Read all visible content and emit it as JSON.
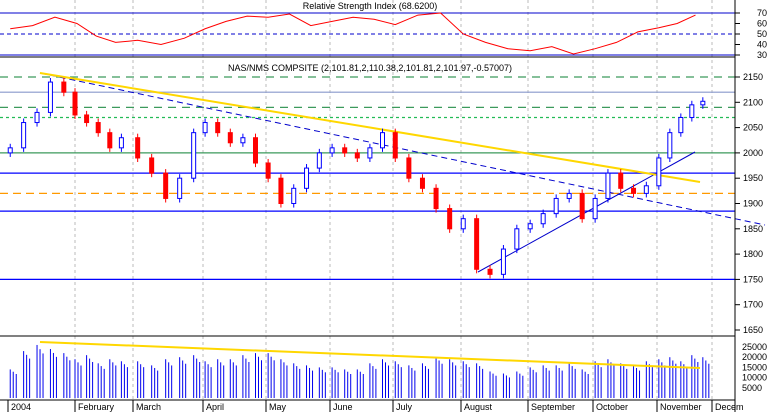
{
  "chart_data": [
    {
      "type": "line",
      "title": "Relative Strength Index (68.6200)",
      "ylim": [
        20,
        80
      ],
      "yticks": [
        30,
        40,
        50,
        60,
        70
      ],
      "levels": [
        30,
        50,
        70
      ],
      "x": [
        "2004-01-02",
        "2004-01-12",
        "2004-01-22",
        "2004-02-02",
        "2004-02-12",
        "2004-02-22",
        "2004-03-03",
        "2004-03-13",
        "2004-03-23",
        "2004-04-02",
        "2004-04-12",
        "2004-04-22",
        "2004-05-02",
        "2004-05-12",
        "2004-05-22",
        "2004-06-02",
        "2004-06-12",
        "2004-06-22",
        "2004-07-02",
        "2004-07-12",
        "2004-07-22",
        "2004-08-02",
        "2004-08-12",
        "2004-08-22",
        "2004-09-02",
        "2004-09-12",
        "2004-09-22",
        "2004-10-02",
        "2004-10-12",
        "2004-10-22",
        "2004-11-02",
        "2004-11-12",
        "2004-11-22"
      ],
      "values": [
        55,
        58,
        66,
        60,
        48,
        42,
        44,
        40,
        46,
        55,
        62,
        67,
        66,
        69,
        58,
        62,
        66,
        64,
        59,
        68,
        70,
        50,
        42,
        36,
        34,
        38,
        31,
        36,
        42,
        52,
        56,
        60,
        68
      ]
    },
    {
      "type": "candlestick",
      "title": "NAS/NMS COMPSITE (2,101.81,2,110.38,2,101.81,2,101.97,-0.57007)",
      "ylim": [
        1630,
        2170
      ],
      "yticks": [
        1650,
        1700,
        1750,
        1800,
        1850,
        1900,
        1950,
        2000,
        2050,
        2100,
        2150
      ],
      "x": [
        "2004-01-02",
        "2004-01-08",
        "2004-01-14",
        "2004-01-20",
        "2004-01-26",
        "2004-02-01",
        "2004-02-07",
        "2004-02-13",
        "2004-02-19",
        "2004-02-25",
        "2004-03-03",
        "2004-03-09",
        "2004-03-15",
        "2004-03-21",
        "2004-03-27",
        "2004-04-02",
        "2004-04-08",
        "2004-04-14",
        "2004-04-20",
        "2004-04-26",
        "2004-05-02",
        "2004-05-08",
        "2004-05-14",
        "2004-05-20",
        "2004-05-26",
        "2004-06-02",
        "2004-06-08",
        "2004-06-14",
        "2004-06-20",
        "2004-06-26",
        "2004-07-02",
        "2004-07-08",
        "2004-07-14",
        "2004-07-20",
        "2004-07-26",
        "2004-08-02",
        "2004-08-08",
        "2004-08-14",
        "2004-08-20",
        "2004-08-26",
        "2004-09-02",
        "2004-09-08",
        "2004-09-14",
        "2004-09-20",
        "2004-09-26",
        "2004-10-02",
        "2004-10-08",
        "2004-10-14",
        "2004-10-20",
        "2004-10-26",
        "2004-11-02",
        "2004-11-08",
        "2004-11-14",
        "2004-11-20",
        "2004-11-26"
      ],
      "close": [
        2010,
        2060,
        2080,
        2140,
        2120,
        2075,
        2060,
        2040,
        2010,
        2030,
        1990,
        1960,
        1910,
        1950,
        2040,
        2060,
        2040,
        2020,
        2030,
        1980,
        1950,
        1900,
        1930,
        1970,
        2000,
        2010,
        2000,
        1990,
        2010,
        2040,
        1990,
        1950,
        1930,
        1890,
        1850,
        1870,
        1770,
        1760,
        1810,
        1850,
        1860,
        1880,
        1910,
        1920,
        1870,
        1910,
        1960,
        1930,
        1920,
        1935,
        1990,
        2040,
        2070,
        2095,
        2102
      ],
      "volume_ylim": [
        0,
        28000
      ],
      "volume_yticks": [
        5000,
        10000,
        15000,
        20000,
        25000
      ],
      "volume": [
        14000,
        23000,
        26000,
        24000,
        22000,
        19000,
        21000,
        17000,
        19000,
        18000,
        18000,
        16000,
        19000,
        20000,
        21000,
        18000,
        19000,
        19000,
        21000,
        22000,
        22000,
        19000,
        17000,
        16000,
        15000,
        15000,
        14000,
        14000,
        17000,
        19000,
        18000,
        16000,
        17000,
        20000,
        19000,
        18000,
        17000,
        13000,
        12000,
        13000,
        15000,
        16000,
        16000,
        17000,
        14000,
        18000,
        19000,
        17000,
        16000,
        18000,
        19000,
        20000,
        18000,
        21000,
        20000
      ],
      "overlays": [
        "trendline",
        "support",
        "horizontal levels",
        "volume moving average"
      ]
    }
  ],
  "x_axis": {
    "months": [
      "2004",
      "February",
      "March",
      "April",
      "May",
      "June",
      "July",
      "August",
      "September",
      "October",
      "November",
      "Decem"
    ]
  },
  "colors": {
    "up": "#0000ff",
    "down": "#ff0000",
    "trend": "#ffd700",
    "level": "#0000cc",
    "rsi": "#ff0000"
  }
}
